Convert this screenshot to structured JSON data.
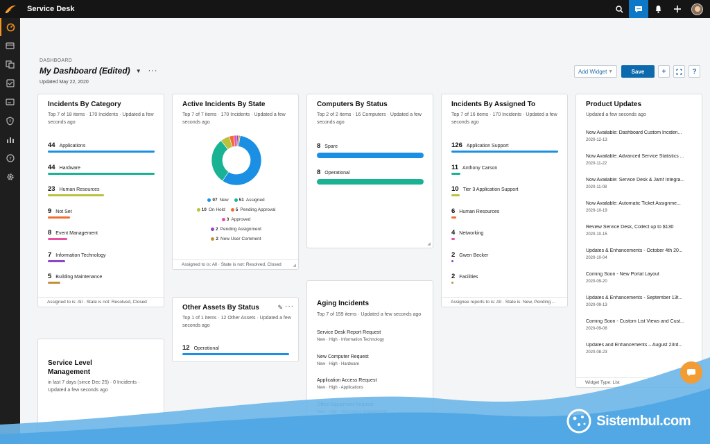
{
  "app": {
    "title": "Service Desk"
  },
  "colors": {
    "accent": "#0d6aad",
    "sidebar_active": "#f7931e"
  },
  "header": {
    "breadcrumb": "DASHBOARD",
    "title": "My Dashboard (Edited)",
    "updated": "Updated May 22, 2020"
  },
  "toolbar": {
    "add_widget": "Add Widget",
    "save": "Save",
    "add": "+",
    "help": "?"
  },
  "widgets": {
    "category": {
      "title": "Incidents By Category",
      "subtitle": "Top 7 of 18 items  ·  170 Incidents  ·  Updated a few seconds ago",
      "footer": "Assigned to is: All  ·  State is not: Resolved, Closed",
      "rows": [
        {
          "count": "44",
          "label": "Applications",
          "value": 44,
          "color": "#1a8fe3"
        },
        {
          "count": "44",
          "label": "Hardware",
          "value": 44,
          "color": "#19b394"
        },
        {
          "count": "23",
          "label": "Human Resources",
          "value": 23,
          "color": "#b9c13d"
        },
        {
          "count": "9",
          "label": "Not Set",
          "value": 9,
          "color": "#f06d32"
        },
        {
          "count": "8",
          "label": "Event Management",
          "value": 8,
          "color": "#e84fa3"
        },
        {
          "count": "7",
          "label": "Information Technology",
          "value": 7,
          "color": "#8e44c8"
        },
        {
          "count": "5",
          "label": "Building Maintenance",
          "value": 5,
          "color": "#c2903c"
        }
      ]
    },
    "state": {
      "title": "Active Incidents By State",
      "subtitle": "Top 7 of 7 items  ·  170 Incidents  ·  Updated a few seconds ago",
      "footer": "Assigned to is: All  ·  State is not: Resolved, Closed",
      "legend": [
        {
          "count": "97",
          "label": "New",
          "value": 97,
          "color": "#1a8fe3"
        },
        {
          "count": "51",
          "label": "Assigned",
          "value": 51,
          "color": "#19b394"
        },
        {
          "count": "10",
          "label": "On Hold",
          "value": 10,
          "color": "#b9c13d"
        },
        {
          "count": "5",
          "label": "Pending Approval",
          "value": 5,
          "color": "#f06d32"
        },
        {
          "count": "3",
          "label": "Approved",
          "value": 3,
          "color": "#e84fa3"
        },
        {
          "count": "2",
          "label": "Pending Assignment",
          "value": 2,
          "color": "#8e44c8"
        },
        {
          "count": "2",
          "label": "New User Comment",
          "value": 2,
          "color": "#c2903c"
        }
      ]
    },
    "computers": {
      "title": "Computers By Status",
      "subtitle": "Top 2 of 2 items  ·  16 Computers  ·  Updated a few seconds ago",
      "rows": [
        {
          "count": "8",
          "label": "Spare",
          "value": 8,
          "color": "#1a8fe3"
        },
        {
          "count": "8",
          "label": "Operational",
          "value": 8,
          "color": "#19b394"
        }
      ]
    },
    "assigned": {
      "title": "Incidents By Assigned To",
      "subtitle": "Top 7 of 16 items  ·  170 Incidents  ·  Updated a few seconds ago",
      "footer": "Assignee reports to is: All  ·  State is: New, Pending ...",
      "rows": [
        {
          "count": "126",
          "label": "Application Support",
          "value": 126,
          "color": "#1a8fe3"
        },
        {
          "count": "11",
          "label": "Anthony Carson",
          "value": 11,
          "color": "#19b394"
        },
        {
          "count": "10",
          "label": "Tier 3 Application Support",
          "value": 10,
          "color": "#b9c13d"
        },
        {
          "count": "6",
          "label": "Human Resources",
          "value": 6,
          "color": "#f06d32"
        },
        {
          "count": "4",
          "label": "Networking",
          "value": 4,
          "color": "#e84fa3"
        },
        {
          "count": "2",
          "label": "Gwen Becker",
          "value": 2,
          "color": "#8e44c8"
        },
        {
          "count": "2",
          "label": "Facilities",
          "value": 2,
          "color": "#c2903c"
        }
      ]
    },
    "updates": {
      "title": "Product Updates",
      "subtitle": "Updated a few seconds ago",
      "footer": "Widget Type: List",
      "items": [
        {
          "title": "Now Available: Dashboard Custom Inciden...",
          "date": "2020-12-13"
        },
        {
          "title": "Now Available: Advanced Service Statistics ...",
          "date": "2020-11-22"
        },
        {
          "title": "Now Available: Service Desk & Jamf Integra...",
          "date": "2020-11-08"
        },
        {
          "title": "Now Available: Automatic Ticket Assignme...",
          "date": "2020-10-19"
        },
        {
          "title": "Review Service Desk, Collect up to $130",
          "date": "2020-10-15"
        },
        {
          "title": "Updates & Enhancements - October 4th 20...",
          "date": "2020-10-04"
        },
        {
          "title": "Coming Soon - New Portal Layout",
          "date": "2020-09-20"
        },
        {
          "title": "Updates & Enhancements - September 13t...",
          "date": "2020-09-13"
        },
        {
          "title": "Coming Soon - Custom List Views and Cust...",
          "date": "2020-09-08"
        },
        {
          "title": "Updates and Enhancements – August 23rd...",
          "date": "2020-08-23"
        }
      ]
    },
    "other": {
      "title": "Other Assets By Status",
      "subtitle": "Top 1 of 1 items  ·  12 Other Assets  ·  Updated a few seconds ago",
      "rows": [
        {
          "count": "12",
          "label": "Operational",
          "value": 12,
          "color": "#1a8fe3"
        }
      ]
    },
    "aging": {
      "title": "Aging Incidents",
      "subtitle": "Top 7 of 159 items  ·  Updated a few seconds ago",
      "items": [
        {
          "title": "Service Desk Report Request",
          "meta": "New  ·  High  ·  Information Technology"
        },
        {
          "title": "New Computer Request",
          "meta": "New  ·  High  ·  Hardware"
        },
        {
          "title": "Application Access Request",
          "meta": "New  ·  High  ·  Applications"
        },
        {
          "title": "Office Equipment Request",
          "meta": "New  ·  High  ·  Workspace Management"
        }
      ]
    },
    "sla": {
      "title": "Service Level Management",
      "subtitle": "in last 7 days (since Dec 25)  ·  0 Incidents  ·  Updated a few seconds ago"
    }
  },
  "watermark": {
    "brand": "Sistembul.com"
  }
}
